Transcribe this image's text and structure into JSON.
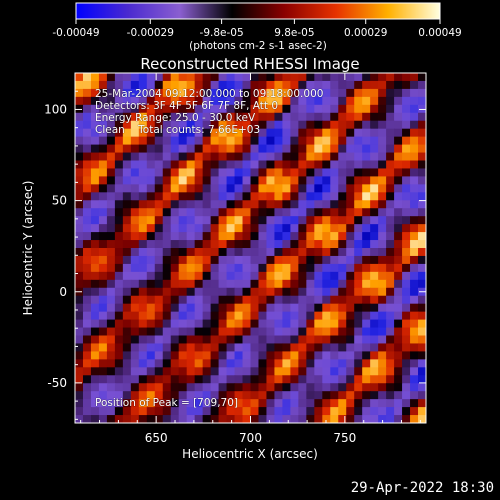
{
  "chart_data": {
    "type": "heatmap",
    "title": "Reconstructed RHESSI Image",
    "xlabel": "Heliocentric X (arcsec)",
    "ylabel": "Heliocentric Y (arcsec)",
    "xlim": [
      607,
      793
    ],
    "ylim": [
      -72,
      120
    ],
    "xticks": [
      650,
      700,
      750
    ],
    "yticks": [
      -50,
      0,
      50,
      100
    ],
    "colorbar": {
      "min": -0.00049,
      "max": 0.00049,
      "tick_labels": [
        "-0.00049",
        "-0.00029",
        "-9.8e-05",
        "9.8e-05",
        "0.00029",
        "0.00049"
      ],
      "unit_label": "(photons cm-2 s-1 asec-2)",
      "colors": [
        "#0000ff",
        "#4a2ad0",
        "#8a5fd0",
        "#000000",
        "#8a0000",
        "#e63200",
        "#ffb000",
        "#ffffe0"
      ]
    },
    "pattern": "diagonal fringes, upper-left to lower-right",
    "peak": [
      709,
      70
    ]
  },
  "annotations": {
    "time": "25-Mar-2004 09:12:00.000 to 09:18:00.000",
    "detectors": "Detectors: 3F 4F 5F 6F 7F 8F, Att 0",
    "energy": "Energy Range: 25.0 - 30.0 keV",
    "method": "Clean    Total counts: 7.66E+03",
    "peak": "Position of Peak = [709,70]"
  },
  "footer": {
    "date": "29-Apr-2022 18:30"
  }
}
